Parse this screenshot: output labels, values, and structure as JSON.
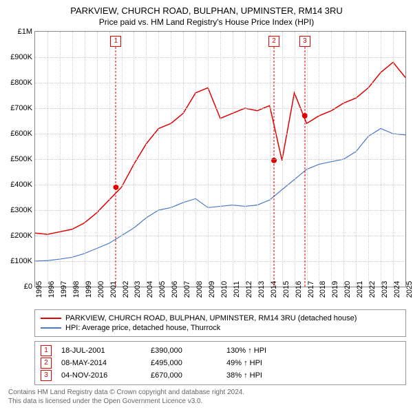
{
  "title": "PARKVIEW, CHURCH ROAD, BULPHAN, UPMINSTER, RM14 3RU",
  "subtitle": "Price paid vs. HM Land Registry's House Price Index (HPI)",
  "chart": {
    "type": "line",
    "background_color": "#ffffff",
    "border_color": "#888888",
    "grid_color": "#cccccc",
    "x_years": [
      1995,
      1996,
      1997,
      1998,
      1999,
      2000,
      2001,
      2002,
      2003,
      2004,
      2005,
      2006,
      2007,
      2008,
      2009,
      2010,
      2011,
      2012,
      2013,
      2014,
      2015,
      2016,
      2017,
      2018,
      2019,
      2020,
      2021,
      2022,
      2023,
      2024,
      2025
    ],
    "y_ticks": [
      0,
      100000,
      200000,
      300000,
      400000,
      500000,
      600000,
      700000,
      800000,
      900000,
      1000000
    ],
    "y_tick_labels": [
      "£0",
      "£100K",
      "£200K",
      "£300K",
      "£400K",
      "£500K",
      "£600K",
      "£700K",
      "£800K",
      "£900K",
      "£1M"
    ],
    "ylim": [
      0,
      1000000
    ],
    "series": [
      {
        "name": "property",
        "label": "PARKVIEW, CHURCH ROAD, BULPHAN, UPMINSTER, RM14 3RU (detached house)",
        "color": "#e00000",
        "line_width": 1.5,
        "values": [
          210000,
          205000,
          215000,
          225000,
          250000,
          290000,
          340000,
          390000,
          480000,
          560000,
          620000,
          640000,
          680000,
          760000,
          780000,
          660000,
          680000,
          700000,
          690000,
          710000,
          495000,
          760000,
          640000,
          670000,
          690000,
          720000,
          740000,
          780000,
          840000,
          880000,
          820000
        ]
      },
      {
        "name": "hpi",
        "label": "HPI: Average price, detached house, Thurrock",
        "color": "#4a78c8",
        "line_width": 1.2,
        "values": [
          100000,
          102000,
          108000,
          115000,
          130000,
          150000,
          170000,
          200000,
          230000,
          270000,
          300000,
          310000,
          330000,
          345000,
          310000,
          315000,
          320000,
          315000,
          320000,
          340000,
          380000,
          420000,
          460000,
          480000,
          490000,
          500000,
          530000,
          590000,
          620000,
          600000,
          595000
        ]
      }
    ],
    "sale_markers": [
      {
        "index": 1,
        "year": 2001.55,
        "price": 390000,
        "color": "#e00000"
      },
      {
        "index": 2,
        "year": 2014.35,
        "price": 495000,
        "color": "#e00000"
      },
      {
        "index": 3,
        "year": 2016.85,
        "price": 670000,
        "color": "#e00000"
      }
    ]
  },
  "legend": {
    "items": [
      {
        "color": "#e00000",
        "label": "PARKVIEW, CHURCH ROAD, BULPHAN, UPMINSTER, RM14 3RU (detached house)"
      },
      {
        "color": "#4a78c8",
        "label": "HPI: Average price, detached house, Thurrock"
      }
    ]
  },
  "sales": [
    {
      "badge": "1",
      "badge_color": "#e00000",
      "date": "18-JUL-2001",
      "price": "£390,000",
      "delta": "130% ↑ HPI"
    },
    {
      "badge": "2",
      "badge_color": "#e00000",
      "date": "08-MAY-2014",
      "price": "£495,000",
      "delta": "49% ↑ HPI"
    },
    {
      "badge": "3",
      "badge_color": "#e00000",
      "date": "04-NOV-2016",
      "price": "£670,000",
      "delta": "38% ↑ HPI"
    }
  ],
  "footer": {
    "line1": "Contains HM Land Registry data © Crown copyright and database right 2024.",
    "line2": "This data is licensed under the Open Government Licence v3.0."
  }
}
